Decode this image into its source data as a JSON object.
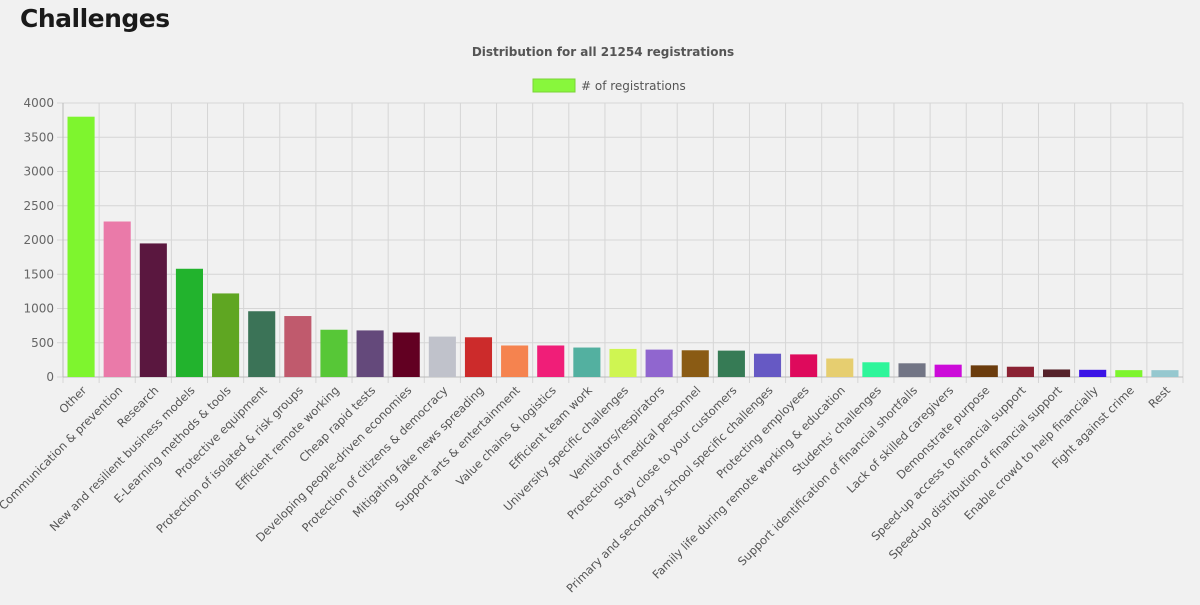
{
  "page": {
    "title": "Challenges"
  },
  "chart_data": {
    "type": "bar",
    "title": "Distribution for all 21254 registrations",
    "xlabel": "",
    "ylabel": "",
    "ylim": [
      0,
      4000
    ],
    "yticks": [
      0,
      500,
      1000,
      1500,
      2000,
      2500,
      3000,
      3500,
      4000
    ],
    "grid": true,
    "legend_position": "top-center",
    "series": [
      {
        "name": "# of registrations",
        "legend_color": "#88f73c",
        "values": [
          3800,
          2270,
          1950,
          1580,
          1220,
          960,
          890,
          690,
          680,
          650,
          590,
          580,
          460,
          460,
          430,
          410,
          400,
          390,
          385,
          340,
          330,
          270,
          215,
          200,
          180,
          170,
          150,
          110,
          105,
          100,
          100
        ]
      }
    ],
    "categories": [
      "Other",
      "Communication & prevention",
      "Research",
      "New and resilient business models",
      "E-Learning methods & tools",
      "Protective equipment",
      "Protection of isolated & risk groups",
      "Efficient remote working",
      "Cheap rapid tests",
      "Developing people-driven economies",
      "Protection of citizens & democracy",
      "Mitigating fake news spreading",
      "Support arts & entertainment",
      "Value chains & logistics",
      "Efficient team work",
      "University specific challenges",
      "Ventilators/respirators",
      "Protection of medical personnel",
      "Stay close to your customers",
      "Primary and secondary school specific challenges",
      "Protecting employees",
      "Family life during remote working & education",
      "Students' challenges",
      "Support identification of financial shortfalls",
      "Lack of skilled caregivers",
      "Demonstrate purpose",
      "Speed-up access to financial support",
      "Speed-up distribution of financial support",
      "Enable crowd to help financially",
      "Fight against crime",
      "Rest"
    ],
    "colors": [
      "#7ef52e",
      "#ea7aa9",
      "#5a173f",
      "#22b32d",
      "#5fa622",
      "#3b7357",
      "#c05a6d",
      "#57c737",
      "#64497b",
      "#620022",
      "#c0c2cb",
      "#cc2b2b",
      "#f5834f",
      "#f01e78",
      "#53b0a0",
      "#cff552",
      "#9066cf",
      "#8a5b14",
      "#367b55",
      "#6659c4",
      "#de0a5c",
      "#e6ce70",
      "#2ef59a",
      "#727585",
      "#cc0bd9",
      "#6b3c0d",
      "#8a2233",
      "#55222a",
      "#3b14e6",
      "#7ef52e",
      "#96c8cf"
    ]
  }
}
